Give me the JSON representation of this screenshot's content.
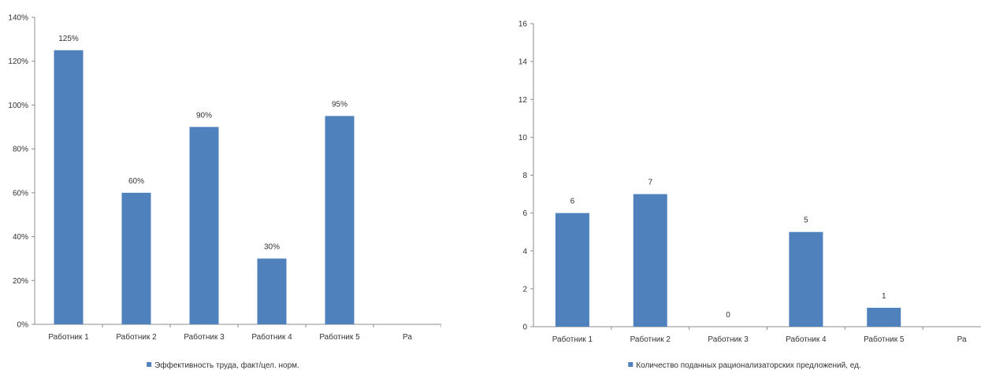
{
  "chart_data": [
    {
      "type": "bar",
      "categories": [
        "Работник 1",
        "Работник 2",
        "Работник 3",
        "Работник 4",
        "Работник 5",
        "Ра"
      ],
      "series": [
        {
          "name": "Эффективность труда, факт/цел. норм.",
          "values": [
            125,
            60,
            90,
            30,
            95,
            null
          ],
          "data_labels": [
            "125%",
            "60%",
            "90%",
            "30%",
            "95%",
            ""
          ]
        }
      ],
      "y_ticks": [
        "0%",
        "20%",
        "40%",
        "60%",
        "80%",
        "100%",
        "120%",
        "140%"
      ],
      "ylim": [
        0,
        140
      ],
      "grid": false,
      "legend_position": "bottom",
      "colors": {
        "bar": "#4f81bd",
        "axis": "#8c8c8c"
      }
    },
    {
      "type": "bar",
      "categories": [
        "Работник 1",
        "Работник 2",
        "Работник 3",
        "Работник 4",
        "Работник 5",
        "Ра"
      ],
      "series": [
        {
          "name": "Количество поданных рационализаторских предложений, ед.",
          "values": [
            6,
            7,
            0,
            5,
            1,
            null
          ],
          "data_labels": [
            "6",
            "7",
            "0",
            "5",
            "1",
            ""
          ]
        }
      ],
      "y_ticks": [
        "0",
        "2",
        "4",
        "6",
        "8",
        "10",
        "12",
        "14",
        "16"
      ],
      "ylim": [
        0,
        16
      ],
      "grid": false,
      "legend_position": "bottom",
      "colors": {
        "bar": "#4f81bd",
        "axis": "#8c8c8c"
      }
    }
  ]
}
